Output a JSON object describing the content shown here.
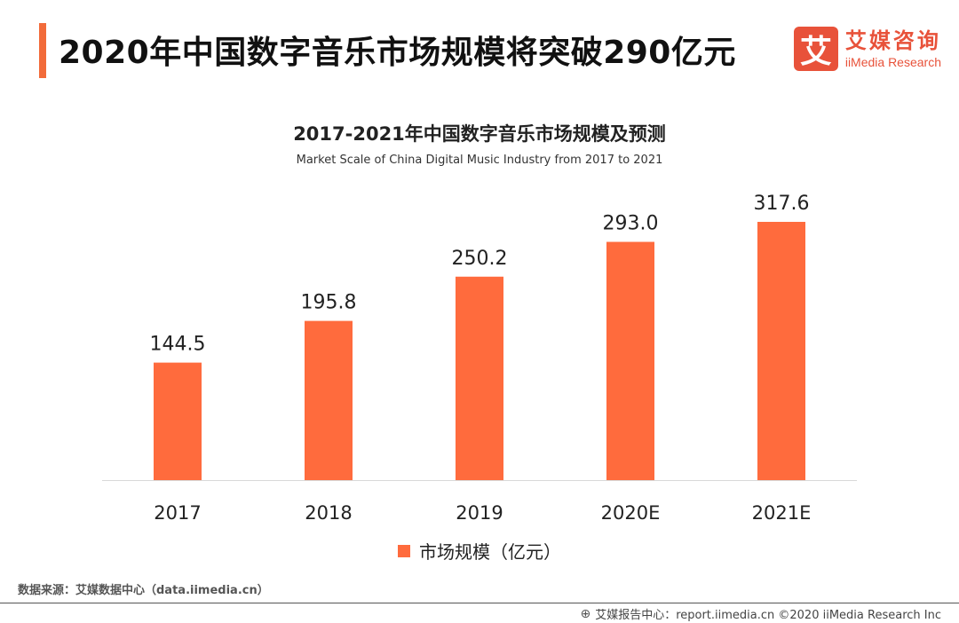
{
  "header": {
    "title": "2020年中国数字音乐市场规模将突破290亿元",
    "logo_mark": "艾",
    "logo_cn": "艾媒咨询",
    "logo_en": "iiMedia Research"
  },
  "chart_data": {
    "type": "bar",
    "title": "2017-2021年中国数字音乐市场规模及预测",
    "subtitle": "Market Scale of China Digital Music Industry from 2017 to 2021",
    "categories": [
      "2017",
      "2018",
      "2019",
      "2020E",
      "2021E"
    ],
    "series": [
      {
        "name": "市场规模（亿元）",
        "values": [
          144.5,
          195.8,
          250.2,
          293.0,
          317.6
        ],
        "color": "#ff6b3d"
      }
    ],
    "value_labels": [
      "144.5",
      "195.8",
      "250.2",
      "293.0",
      "317.6"
    ],
    "xlabel": "",
    "ylabel": "",
    "ylim": [
      0,
      330
    ],
    "grid": false,
    "legend_position": "bottom"
  },
  "source": "数据来源：艾媒数据中心（data.iimedia.cn）",
  "footer": "艾媒报告中心：report.iimedia.cn  ©2020  iiMedia Research  Inc"
}
